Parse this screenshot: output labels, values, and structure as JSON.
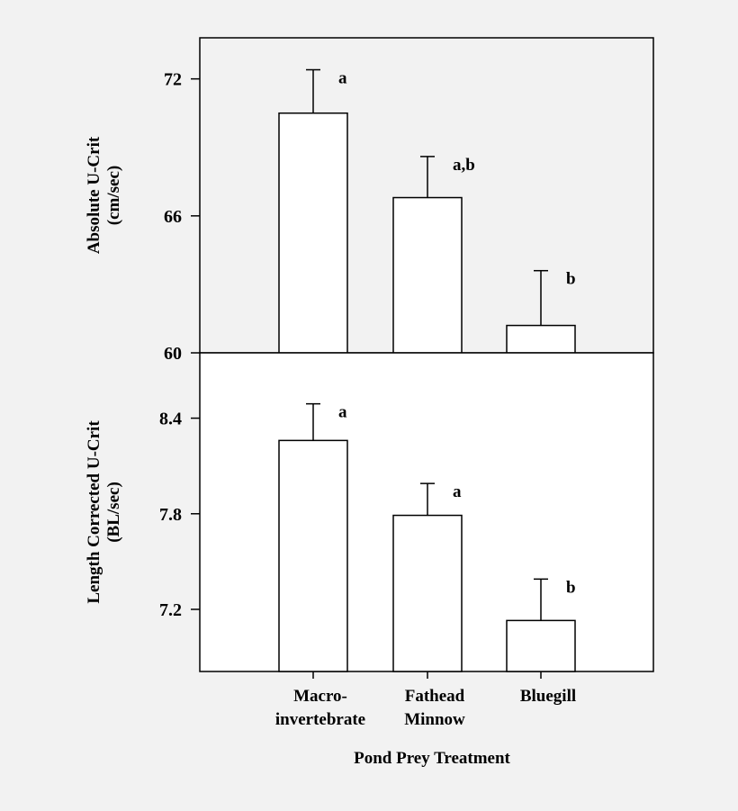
{
  "chart_data": [
    {
      "type": "bar",
      "categories": [
        "Macro-\ninvertebrate",
        "Fathead\nMinnow",
        "Bluegill"
      ],
      "values": [
        70.5,
        66.8,
        61.2
      ],
      "errors": [
        1.9,
        1.8,
        2.4
      ],
      "significance": [
        "a",
        "a,b",
        "b"
      ],
      "ylabel": [
        "Absolute U-Crit",
        "(cm/sec)"
      ],
      "ylim": [
        60,
        73.8
      ],
      "yticks": [
        "60",
        "66",
        "72"
      ]
    },
    {
      "type": "bar",
      "categories": [
        "Macro-\ninvertebrate",
        "Fathead\nMinnow",
        "Bluegill"
      ],
      "values": [
        8.26,
        7.79,
        7.13
      ],
      "errors": [
        0.23,
        0.2,
        0.26
      ],
      "significance": [
        "a",
        "a",
        "b"
      ],
      "ylabel": [
        "Length Corrected U-Crit",
        "(BL/sec)"
      ],
      "ylim": [
        6.81,
        8.81
      ],
      "yticks": [
        "8.4",
        "7.8",
        "7.2"
      ]
    }
  ],
  "shared": {
    "category_labels": [
      [
        "Macro-",
        "invertebrate"
      ],
      [
        "Fathead",
        "Minnow"
      ],
      [
        "Bluegill"
      ]
    ],
    "xlabel": "Pond Prey Treatment"
  }
}
